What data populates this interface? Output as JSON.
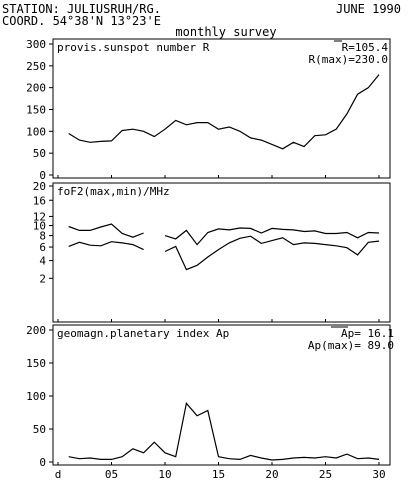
{
  "header": {
    "station": "STATION: JULIUSRUH/RG.",
    "coord": "COORD. 54°38'N 13°23'E",
    "date": "JUNE 1990",
    "survey": "monthly survey"
  },
  "chart_data": [
    {
      "type": "line",
      "title": "provis.sunspot number R",
      "annotations": [
        "R=105.4",
        "R(max)=230.0"
      ],
      "ylim": [
        0,
        300
      ],
      "yticks": [
        "300",
        "250",
        "200",
        "150",
        "100",
        "50",
        "0"
      ],
      "ytick_values": [
        300,
        250,
        200,
        150,
        100,
        50,
        0
      ],
      "xlim": [
        0,
        31
      ],
      "series": [
        {
          "x": [
            1,
            2,
            3,
            4,
            5,
            6,
            7,
            8,
            9,
            10,
            11,
            12,
            13,
            14,
            15,
            16,
            17,
            18,
            19,
            20,
            21,
            22,
            23,
            24,
            25,
            26,
            27,
            28,
            29,
            30
          ],
          "values": [
            95,
            80,
            75,
            77,
            78,
            102,
            105,
            100,
            88,
            105,
            125,
            115,
            120,
            120,
            105,
            110,
            100,
            85,
            80,
            70,
            60,
            75,
            65,
            90,
            92,
            105,
            140,
            185,
            200,
            230
          ]
        }
      ]
    },
    {
      "type": "line",
      "title": "foF2(max,min)/MHz",
      "ylim": [
        0,
        20
      ],
      "yticks": [
        "20",
        "16",
        "12",
        "10",
        "8",
        "6",
        "4",
        "2"
      ],
      "ytick_values": [
        20,
        16,
        12,
        10,
        8,
        6,
        4,
        2
      ],
      "xlim": [
        0,
        31
      ],
      "series": [
        {
          "segments": [
            {
              "x": [
                1,
                2,
                3,
                4,
                5,
                6,
                7,
                8
              ],
              "values": [
                9.8,
                9.0,
                9.0,
                9.7,
                10.3,
                8.4,
                7.7,
                8.5
              ]
            },
            {
              "x": [
                10,
                11,
                12,
                13,
                14,
                15,
                16,
                17,
                18,
                19,
                20,
                21,
                22,
                23,
                24,
                25,
                26,
                27,
                28,
                29,
                30
              ],
              "values": [
                8.0,
                7.4,
                9.0,
                6.4,
                8.6,
                9.3,
                9.1,
                9.5,
                9.4,
                8.5,
                9.4,
                9.2,
                9.1,
                8.8,
                8.9,
                8.4,
                8.4,
                8.6,
                7.6,
                8.6,
                8.5
              ]
            }
          ]
        },
        {
          "segments": [
            {
              "x": [
                1,
                2,
                3,
                4,
                5,
                6,
                7,
                8
              ],
              "values": [
                6.1,
                6.8,
                6.3,
                6.2,
                6.9,
                6.7,
                6.4,
                5.6
              ]
            },
            {
              "x": [
                10,
                11,
                12,
                13,
                14,
                15,
                16,
                17,
                18,
                19,
                20,
                21,
                22,
                23,
                24,
                25,
                26,
                27,
                28,
                29,
                30
              ],
              "values": [
                5.3,
                6.1,
                2.9,
                3.4,
                4.5,
                5.6,
                6.7,
                7.5,
                7.9,
                6.6,
                7.1,
                7.6,
                6.4,
                6.7,
                6.6,
                6.4,
                6.2,
                5.9,
                4.8,
                6.8,
                7.0
              ]
            }
          ]
        }
      ]
    },
    {
      "type": "line",
      "title": "geomagn.planetary index Ap",
      "annotations": [
        "Ap= 16.1",
        "Ap(max)= 89.0"
      ],
      "ylim": [
        0,
        200
      ],
      "yticks": [
        "200",
        "150",
        "100",
        "50",
        "0"
      ],
      "ytick_values": [
        200,
        150,
        100,
        50,
        0
      ],
      "xlim": [
        0,
        31
      ],
      "xticks": [
        "d",
        "05",
        "10",
        "15",
        "20",
        "25",
        "30"
      ],
      "xtick_values": [
        0,
        5,
        10,
        15,
        20,
        25,
        30
      ],
      "series": [
        {
          "x": [
            1,
            2,
            3,
            4,
            5,
            6,
            7,
            8,
            9,
            10,
            11,
            12,
            13,
            14,
            15,
            16,
            17,
            18,
            19,
            20,
            21,
            22,
            23,
            24,
            25,
            26,
            27,
            28,
            29,
            30
          ],
          "values": [
            8,
            5,
            6,
            4,
            4,
            8,
            20,
            14,
            30,
            14,
            8,
            89,
            70,
            78,
            8,
            5,
            4,
            10,
            6,
            3,
            4,
            6,
            7,
            6,
            8,
            6,
            12,
            5,
            6,
            4
          ]
        }
      ]
    }
  ]
}
